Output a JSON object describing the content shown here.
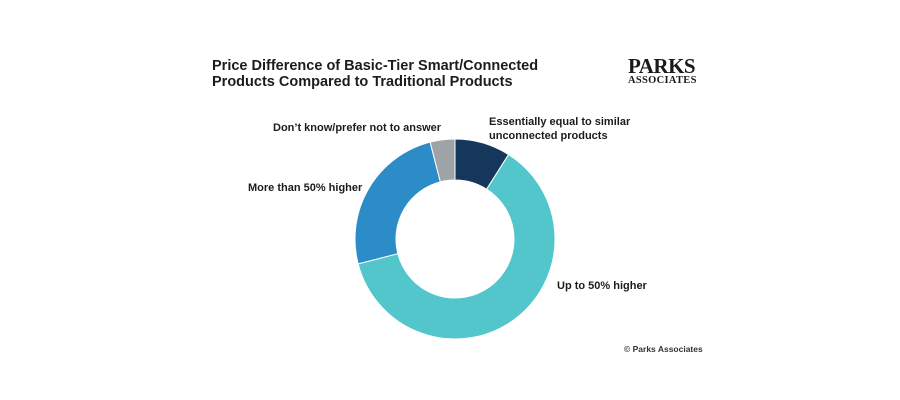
{
  "title_lines": [
    "Price Difference of Basic-Tier Smart/Connected",
    "Products Compared to Traditional Products"
  ],
  "logo": {
    "line1": "PARKS",
    "line2": "ASSOCIATES"
  },
  "copyright": "© Parks Associates",
  "chart_data": {
    "type": "pie",
    "donut": true,
    "title": "Price Difference of Basic-Tier Smart/Connected Products Compared to Traditional Products",
    "slices": [
      {
        "label_lines": [
          "Essentially equal to similar",
          "unconnected products"
        ],
        "value": 9,
        "color": "#15375c"
      },
      {
        "label_lines": [
          "Up to 50% higher"
        ],
        "value": 62,
        "color": "#52c6cb"
      },
      {
        "label_lines": [
          "More than 50% higher"
        ],
        "value": 25,
        "color": "#2b8cc7"
      },
      {
        "label_lines": [
          "Don’t know/prefer not to answer"
        ],
        "value": 4,
        "color": "#9ea3a7"
      }
    ],
    "legend": "none"
  }
}
